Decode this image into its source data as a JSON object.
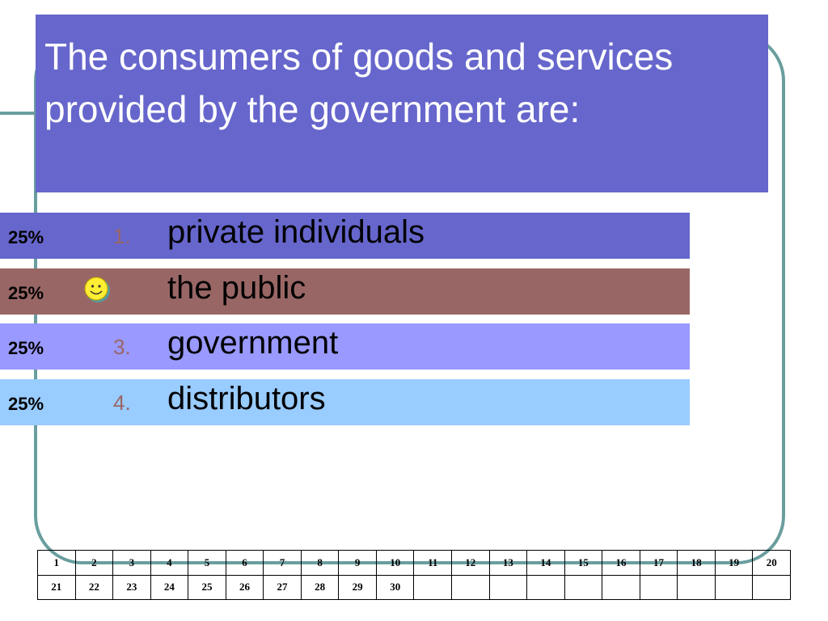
{
  "title": "The consumers of goods and services provided by the government are:",
  "options": [
    {
      "percent": "25%",
      "number": "1.",
      "text": "private individuals"
    },
    {
      "percent": "25%",
      "text": "the public"
    },
    {
      "percent": "25%",
      "number": "3.",
      "text": "government"
    },
    {
      "percent": "25%",
      "number": "4.",
      "text": "distributors"
    }
  ],
  "response_grid": {
    "rows": [
      [
        1,
        2,
        3,
        4,
        5,
        6,
        7,
        8,
        9,
        10,
        11,
        12,
        13,
        14,
        15,
        16,
        17,
        18,
        19,
        20
      ],
      [
        21,
        22,
        23,
        24,
        25,
        26,
        27,
        28,
        29,
        30
      ]
    ]
  }
}
